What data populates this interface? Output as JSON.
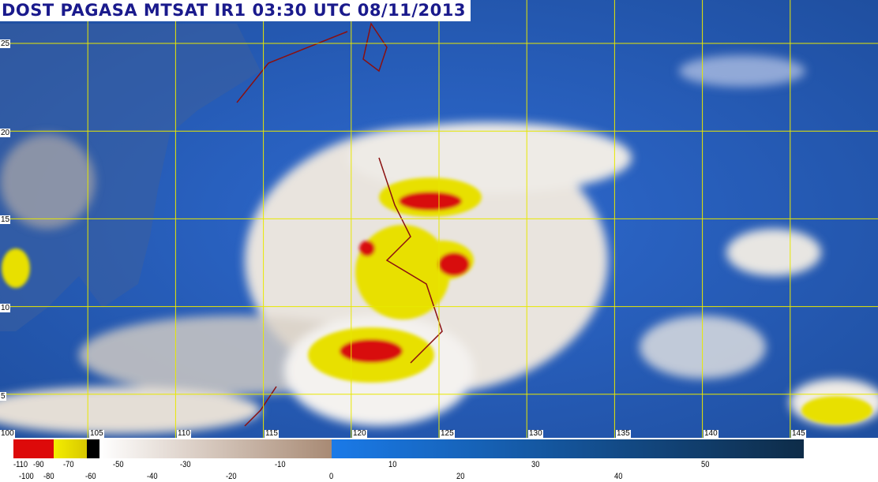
{
  "title": "DOST PAGASA MTSAT IR1 03:30 UTC 08/11/2013",
  "grid": {
    "latitudes": [
      "25",
      "20",
      "15",
      "10",
      "5"
    ],
    "longitudes": [
      "100",
      "105",
      "110",
      "115",
      "120",
      "125",
      "130",
      "135",
      "140",
      "145"
    ],
    "grid_color": "#e8e800"
  },
  "colors": {
    "ocean": "#2a5fb8",
    "cloud": "#f2f0ee",
    "cold_cloud": "#e8e000",
    "very_cold": "#d81010",
    "coastline": "#8a1010"
  },
  "legend": {
    "segments": [
      {
        "from": -110,
        "to": -80,
        "color": "#dd0a0a"
      },
      {
        "from": -80,
        "to": -65,
        "color": "#f0e800"
      },
      {
        "from": -65,
        "to": -57,
        "color": "#000000"
      },
      {
        "from": -57,
        "to": 0,
        "color_start": "#ffffff",
        "color_end": "#a88a74"
      },
      {
        "from": 0,
        "to": 55,
        "color_start": "#1a7ae8",
        "color_end": "#0e2c48"
      }
    ],
    "labels_top": [
      "-110",
      "-90",
      "-70",
      "-50",
      "-30",
      "-10",
      "10",
      "30",
      "50"
    ],
    "labels_bottom": [
      "-100",
      "-80",
      "-60",
      "-40",
      "-20",
      "0",
      "20",
      "40"
    ]
  }
}
